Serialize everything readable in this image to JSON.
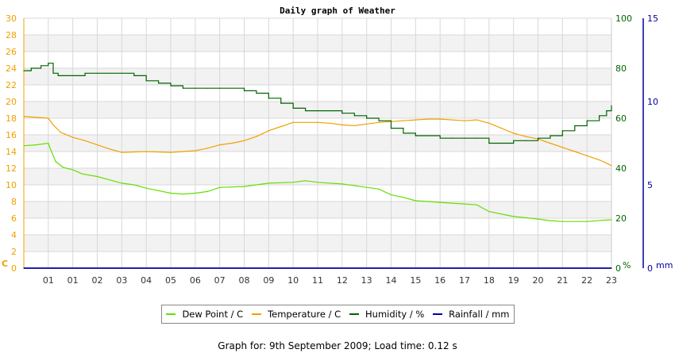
{
  "chart_data": {
    "type": "line",
    "title": "Daily graph of Weather",
    "x_tick_labels": [
      "01",
      "01",
      "02",
      "03",
      "04",
      "05",
      "06",
      "07",
      "08",
      "09",
      "10",
      "11",
      "12",
      "13",
      "14",
      "15",
      "16",
      "17",
      "18",
      "19",
      "20",
      "21",
      "22",
      "23"
    ],
    "xlim": [
      0,
      24
    ],
    "left_axis": {
      "unit_label": "C",
      "ticks": [
        0,
        2,
        4,
        6,
        8,
        10,
        12,
        14,
        16,
        18,
        20,
        22,
        24,
        26,
        28,
        30
      ],
      "ylim": [
        0,
        30
      ],
      "color": "#f0a000"
    },
    "right_axis_humidity": {
      "unit_label": "%",
      "ticks": [
        0,
        20,
        40,
        60,
        80,
        100
      ],
      "ylim": [
        0,
        100
      ],
      "color": "#006400"
    },
    "right_axis_rainfall": {
      "unit_label": "mm",
      "ticks": [
        0,
        5,
        10,
        15
      ],
      "ylim": [
        0,
        15
      ],
      "color": "#0000a0"
    },
    "grid": true,
    "series": [
      {
        "name": "Dew Point / C",
        "axis": "left",
        "color": "#66dd00",
        "x": [
          0,
          0.5,
          1.0,
          1.1,
          1.3,
          1.6,
          2.0,
          2.4,
          3.0,
          4.0,
          4.5,
          5.0,
          5.5,
          6.0,
          6.5,
          7.0,
          7.5,
          8.0,
          9.0,
          10.0,
          11.0,
          11.5,
          12.0,
          13.0,
          14.0,
          14.5,
          15.0,
          15.5,
          16.0,
          16.5,
          17.0,
          17.5,
          18.0,
          18.5,
          19.0,
          19.5,
          20.0,
          21.0,
          21.5,
          22.0,
          23.0,
          23.9,
          24.0
        ],
        "values": [
          14.7,
          14.8,
          15.0,
          14.2,
          12.8,
          12.1,
          11.8,
          11.3,
          11.0,
          10.2,
          10.0,
          9.6,
          9.3,
          9.0,
          8.9,
          9.0,
          9.2,
          9.7,
          9.8,
          10.2,
          10.3,
          10.5,
          10.3,
          10.1,
          9.7,
          9.5,
          8.8,
          8.5,
          8.1,
          8.0,
          7.9,
          7.8,
          7.7,
          7.6,
          6.8,
          6.5,
          6.2,
          5.9,
          5.7,
          5.6,
          5.6,
          5.8,
          5.8
        ]
      },
      {
        "name": "Temperature / C",
        "axis": "left",
        "color": "#f0a000",
        "x": [
          0,
          0.5,
          1.0,
          1.2,
          1.5,
          2.0,
          2.5,
          3.0,
          3.5,
          4.0,
          5.0,
          6.0,
          6.5,
          7.0,
          7.5,
          8.0,
          8.5,
          9.0,
          9.5,
          10.0,
          10.5,
          11.0,
          12.0,
          12.5,
          13.0,
          13.5,
          14.0,
          14.5,
          15.0,
          15.5,
          16.0,
          16.5,
          17.0,
          18.0,
          18.5,
          19.0,
          19.5,
          20.0,
          20.5,
          21.0,
          21.5,
          22.0,
          22.5,
          23.0,
          23.5,
          23.8,
          24.0
        ],
        "values": [
          18.2,
          18.1,
          18.0,
          17.2,
          16.3,
          15.7,
          15.3,
          14.8,
          14.3,
          13.9,
          14.0,
          13.9,
          14.0,
          14.1,
          14.4,
          14.8,
          15.0,
          15.3,
          15.8,
          16.5,
          17.0,
          17.5,
          17.5,
          17.4,
          17.2,
          17.1,
          17.3,
          17.5,
          17.6,
          17.7,
          17.8,
          17.9,
          17.9,
          17.7,
          17.8,
          17.4,
          16.8,
          16.2,
          15.8,
          15.5,
          15.0,
          14.5,
          14.0,
          13.5,
          13.0,
          12.6,
          12.3
        ]
      },
      {
        "name": "Humidity / %",
        "axis": "right_humidity",
        "color": "#006400",
        "x": [
          0,
          0.3,
          0.7,
          1.0,
          1.2,
          1.4,
          2.0,
          2.5,
          3.0,
          3.5,
          4.0,
          4.5,
          5.0,
          5.5,
          6.0,
          6.5,
          7.0,
          7.5,
          8.0,
          8.5,
          9.0,
          9.5,
          10.0,
          10.5,
          11.0,
          11.5,
          12.0,
          12.5,
          13.0,
          13.5,
          14.0,
          14.5,
          15.0,
          15.5,
          16.0,
          16.5,
          17.0,
          17.5,
          18.0,
          18.5,
          19.0,
          19.5,
          20.0,
          20.5,
          21.0,
          21.5,
          22.0,
          22.5,
          23.0,
          23.5,
          23.8,
          24.0
        ],
        "values": [
          79,
          80,
          81,
          82,
          78,
          77,
          77,
          78,
          78,
          78,
          78,
          77,
          75,
          74,
          73,
          72,
          72,
          72,
          72,
          72,
          71,
          70,
          68,
          66,
          64,
          63,
          63,
          63,
          62,
          61,
          60,
          59,
          56,
          54,
          53,
          53,
          52,
          52,
          52,
          52,
          50,
          50,
          51,
          51,
          52,
          53,
          55,
          57,
          59,
          61,
          63,
          65
        ]
      },
      {
        "name": "Rainfall / mm",
        "axis": "right_rainfall",
        "color": "#0000a0",
        "x": [
          0,
          24
        ],
        "values": [
          0,
          0
        ]
      }
    ]
  },
  "footer": {
    "date_label": "Graph for: 9th September 2009; Load time: 0.12 s"
  }
}
